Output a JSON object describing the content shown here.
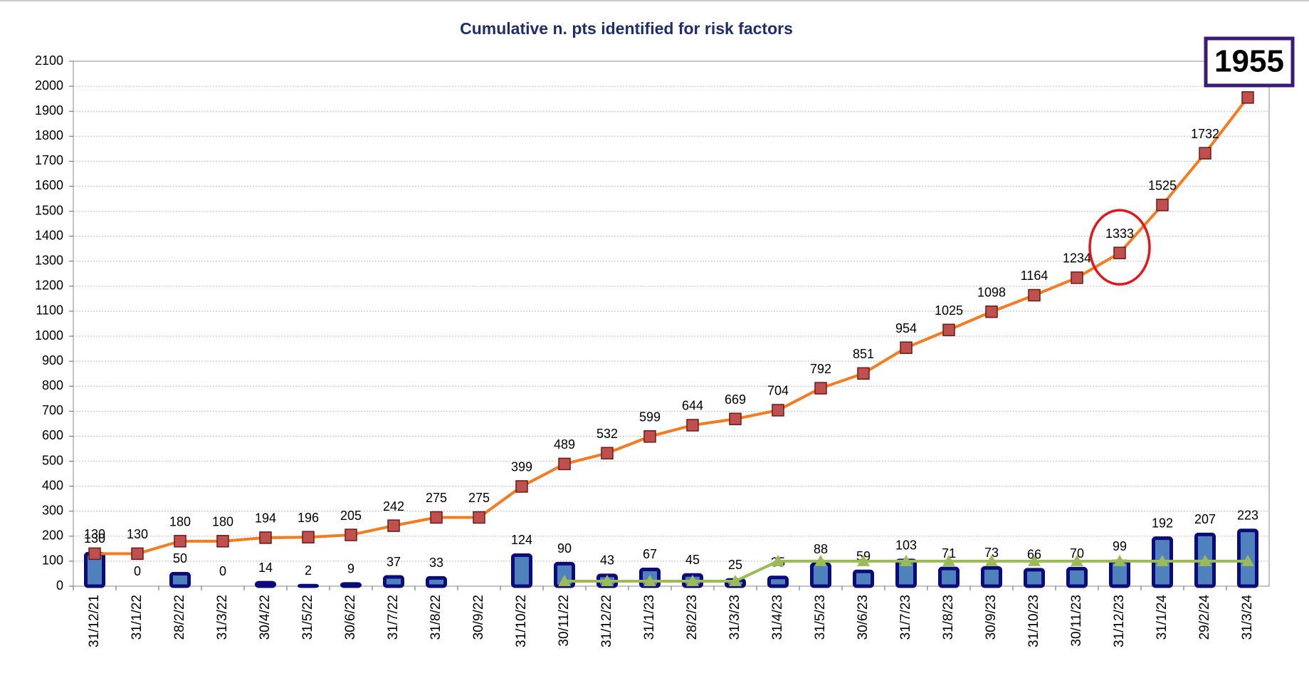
{
  "chart_data": {
    "type": "combo",
    "title": "Cumulative n. pts identified for risk factors",
    "categories": [
      "31/12/21",
      "31/1/22",
      "28/2/22",
      "31/3/22",
      "30/4/22",
      "31/5/22",
      "30/6/22",
      "31/7/22",
      "31/8/22",
      "30/9/22",
      "31/10/22",
      "30/11/22",
      "31/12/22",
      "31/1/23",
      "28/2/23",
      "31/3/23",
      "31/4/23",
      "31/5/23",
      "30/6/23",
      "31/7/23",
      "31/8/23",
      "30/9/23",
      "31/10/23",
      "30/11/23",
      "31/12/23",
      "31/1/24",
      "29/2/24",
      "31/3/24"
    ],
    "series": [
      {
        "type": "line",
        "color": "#f47b20",
        "marker_color": "#c0504d",
        "values": [
          130,
          130,
          180,
          180,
          194,
          196,
          205,
          242,
          275,
          275,
          399,
          489,
          532,
          599,
          644,
          669,
          704,
          792,
          851,
          954,
          1025,
          1098,
          1164,
          1234,
          1333,
          1525,
          1732,
          1955
        ]
      },
      {
        "type": "bar",
        "color": "#4f81bd",
        "edge_color": "#0b0b7a",
        "values": [
          130,
          0,
          50,
          0,
          14,
          2,
          9,
          37,
          33,
          null,
          124,
          90,
          43,
          67,
          45,
          25,
          35,
          88,
          59,
          103,
          71,
          73,
          66,
          70,
          99,
          192,
          207,
          223
        ]
      },
      {
        "type": "line",
        "color": "#9bbb59",
        "values": [
          null,
          null,
          null,
          null,
          null,
          null,
          null,
          null,
          null,
          null,
          null,
          20,
          20,
          20,
          20,
          20,
          100,
          100,
          100,
          100,
          100,
          100,
          100,
          100,
          100,
          100,
          100,
          100
        ]
      }
    ],
    "ylim": [
      0,
      2100
    ],
    "yticks": [
      0,
      100,
      200,
      300,
      400,
      500,
      600,
      700,
      800,
      900,
      1000,
      1100,
      1200,
      1300,
      1400,
      1500,
      1600,
      1700,
      1800,
      1900,
      2000,
      2100
    ],
    "grid": true
  }
}
